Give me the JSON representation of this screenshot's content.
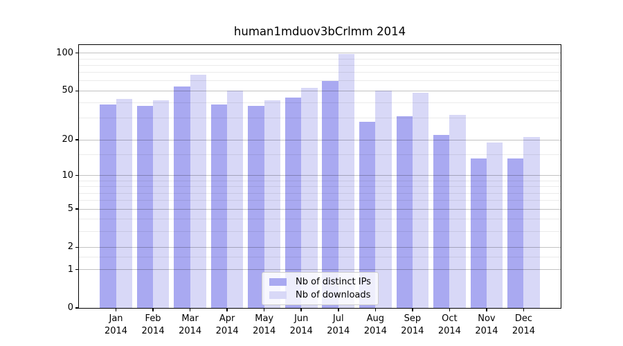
{
  "title": "human1mduov3bCrlmm 2014",
  "chart_data": {
    "type": "bar",
    "title": "human1mduov3bCrlmm 2014",
    "categories": [
      "Jan",
      "Feb",
      "Mar",
      "Apr",
      "May",
      "Jun",
      "Jul",
      "Aug",
      "Sep",
      "Oct",
      "Nov",
      "Dec"
    ],
    "x_year_label": "2014",
    "series": [
      {
        "name": "Nb of distinct IPs",
        "color": "#a9a9f1",
        "values": [
          39,
          38,
          54,
          39,
          38,
          44,
          60,
          28,
          31,
          22,
          14,
          14
        ]
      },
      {
        "name": "Nb of downloads",
        "color": "#d8d8f7",
        "values": [
          43,
          42,
          67,
          50,
          42,
          53,
          98,
          50,
          48,
          32,
          19,
          21
        ]
      }
    ],
    "y_scale": "log1p",
    "ylim": [
      0,
      116
    ],
    "yticks": [
      0,
      1,
      2,
      5,
      10,
      20,
      50,
      100
    ],
    "yticks_minor": [
      1.5,
      3,
      4,
      6,
      7,
      8,
      9,
      15,
      30,
      40,
      60,
      70,
      80,
      90
    ],
    "grid": true,
    "legend_position": "lower center",
    "colors": {
      "bar_distinct_ips": "#a9a9f1",
      "bar_downloads": "#d8d8f7",
      "major_grid": "#c5c5c5",
      "minor_grid": "#ececec",
      "axis": "#000000",
      "background": "#ffffff"
    }
  }
}
